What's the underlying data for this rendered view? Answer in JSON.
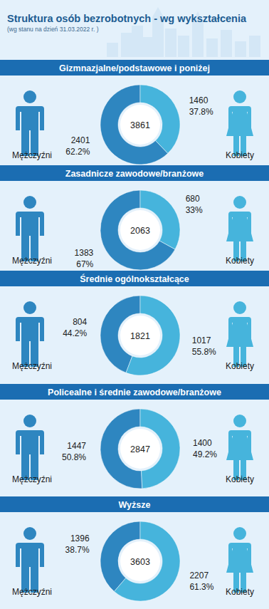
{
  "header": {
    "title": "Struktura osób bezrobotnych - wg wykształcenia",
    "subtitle": "(wg stanu na dzień 31.03.2022 r. )"
  },
  "chart_data": [
    {
      "type": "pie",
      "title": "Gizmnazjalne/podstawowe i poniżej",
      "categories": [
        "Mężczyźni",
        "Kobiety"
      ],
      "values": [
        62.2,
        37.8
      ],
      "value_labels": [
        "62.2%",
        "37.8%"
      ],
      "counts": [
        2401,
        1460
      ],
      "total": 3861,
      "colors": [
        "#2e86c0",
        "#46b4dc"
      ],
      "data_labels": true
    },
    {
      "type": "pie",
      "title": "Zasadnicze zawodowe/branżowe",
      "categories": [
        "Mężczyźni",
        "Kobiety"
      ],
      "values": [
        67,
        33
      ],
      "value_labels": [
        "67%",
        "33%"
      ],
      "counts": [
        1383,
        680
      ],
      "total": 2063,
      "colors": [
        "#2e86c0",
        "#46b4dc"
      ],
      "data_labels": true
    },
    {
      "type": "pie",
      "title": "Średnie ogólnokształcące",
      "categories": [
        "Mężczyźni",
        "Kobiety"
      ],
      "values": [
        44.2,
        55.8
      ],
      "value_labels": [
        "44.2%",
        "55.8%"
      ],
      "counts": [
        804,
        1017
      ],
      "total": 1821,
      "colors": [
        "#2e86c0",
        "#46b4dc"
      ],
      "data_labels": true
    },
    {
      "type": "pie",
      "title": "Policealne i średnie zawodowe/branżowe",
      "categories": [
        "Mężczyźni",
        "Kobiety"
      ],
      "values": [
        50.8,
        49.2
      ],
      "value_labels": [
        "50.8%",
        "49.2%"
      ],
      "counts": [
        1447,
        1400
      ],
      "total": 2847,
      "colors": [
        "#2e86c0",
        "#46b4dc"
      ],
      "data_labels": true
    },
    {
      "type": "pie",
      "title": "Wyższe",
      "categories": [
        "Mężczyźni",
        "Kobiety"
      ],
      "values": [
        38.7,
        61.3
      ],
      "value_labels": [
        "38.7%",
        "61.3%"
      ],
      "counts": [
        1396,
        2207
      ],
      "total": 3603,
      "colors": [
        "#2e86c0",
        "#46b4dc"
      ],
      "data_labels": true
    }
  ]
}
